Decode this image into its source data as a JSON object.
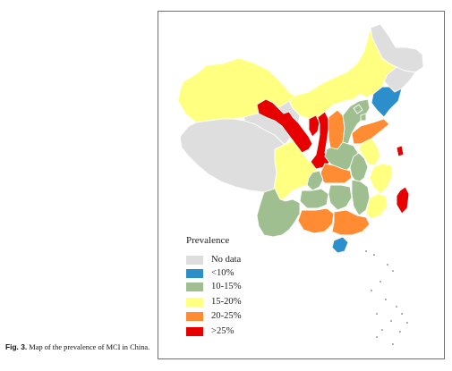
{
  "caption": {
    "label": "Fig. 3.",
    "text": " Map of the prevalence of MCI in China."
  },
  "legend": {
    "title": "Prevalence",
    "items": [
      {
        "label": "No data",
        "color": "#dedede"
      },
      {
        "label": "<10%",
        "color": "#2c8fcc"
      },
      {
        "label": "10-15%",
        "color": "#9fbf90"
      },
      {
        "label": "15-20%",
        "color": "#ffff80"
      },
      {
        "label": "20-25%",
        "color": "#ff8c32"
      },
      {
        "label": ">25%",
        "color": "#e60000"
      }
    ]
  },
  "regions": [
    {
      "name": "Heilongjiang",
      "category": "No data"
    },
    {
      "name": "Jilin",
      "category": "No data"
    },
    {
      "name": "Liaoning",
      "category": "<10%"
    },
    {
      "name": "Inner Mongolia",
      "category": "15-20%"
    },
    {
      "name": "Xinjiang",
      "category": "15-20%"
    },
    {
      "name": "Tibet",
      "category": "No data"
    },
    {
      "name": "Qinghai",
      "category": "No data"
    },
    {
      "name": "Gansu",
      "category": ">25%"
    },
    {
      "name": "Ningxia",
      "category": ">25%"
    },
    {
      "name": "Shaanxi",
      "category": ">25%"
    },
    {
      "name": "Shanxi",
      "category": "20-25%"
    },
    {
      "name": "Hebei",
      "category": "10-15%"
    },
    {
      "name": "Beijing",
      "category": "10-15%"
    },
    {
      "name": "Tianjin",
      "category": "10-15%"
    },
    {
      "name": "Shandong",
      "category": "20-25%"
    },
    {
      "name": "Henan",
      "category": "10-15%"
    },
    {
      "name": "Jiangsu",
      "category": "15-20%"
    },
    {
      "name": "Shanghai",
      "category": ">25%"
    },
    {
      "name": "Anhui",
      "category": "10-15%"
    },
    {
      "name": "Hubei",
      "category": "20-25%"
    },
    {
      "name": "Sichuan",
      "category": "15-20%"
    },
    {
      "name": "Chongqing",
      "category": "10-15%"
    },
    {
      "name": "Guizhou",
      "category": "10-15%"
    },
    {
      "name": "Yunnan",
      "category": "10-15%"
    },
    {
      "name": "Hunan",
      "category": "10-15%"
    },
    {
      "name": "Jiangxi",
      "category": "10-15%"
    },
    {
      "name": "Zhejiang",
      "category": "15-20%"
    },
    {
      "name": "Fujian",
      "category": "15-20%"
    },
    {
      "name": "Guangxi",
      "category": "20-25%"
    },
    {
      "name": "Guangdong",
      "category": "20-25%"
    },
    {
      "name": "Taiwan",
      "category": ">25%"
    },
    {
      "name": "Hainan",
      "category": "<10%"
    }
  ]
}
